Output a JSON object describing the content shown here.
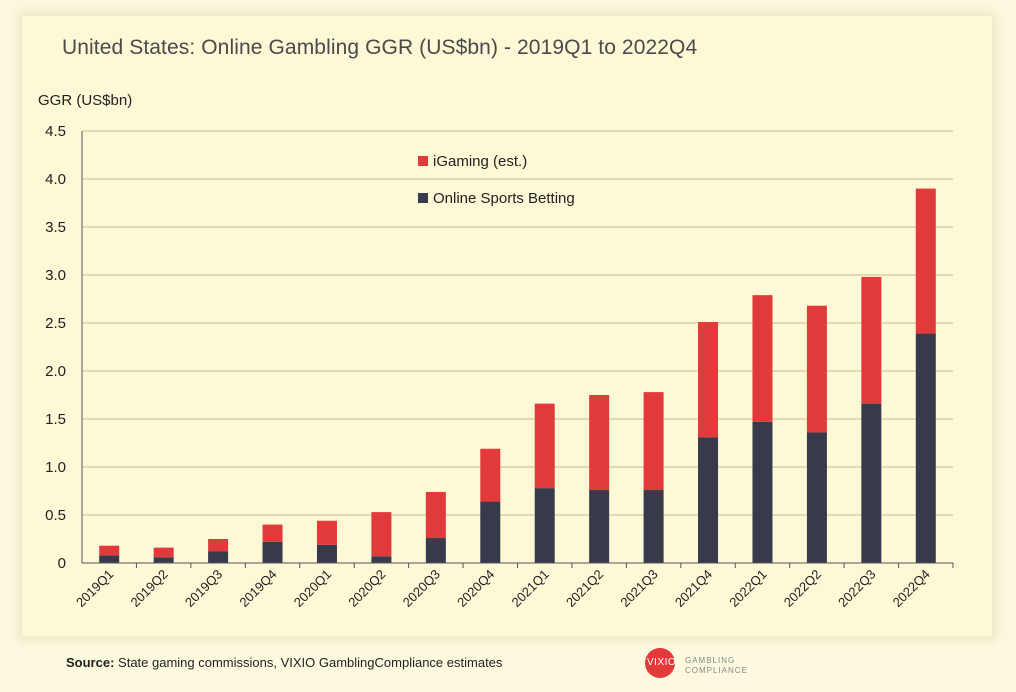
{
  "title": "United States: Online Gambling GGR (US$bn) - 2019Q1 to 2022Q4",
  "source_label": "Source:",
  "source_text": "State gaming commissions, VIXIO GamblingCompliance estimates",
  "logo": {
    "brand": "VIXIO",
    "line1": "GAMBLING",
    "line2": "COMPLIANCE"
  },
  "colors": {
    "igaming": "#e23a3a",
    "sports": "#373a4a",
    "grid": "#c9bf8f",
    "axis": "#555555"
  },
  "chart_data": {
    "type": "bar",
    "stacked": true,
    "title": "United States: Online Gambling GGR (US$bn) - 2019Q1 to 2022Q4",
    "ylabel": "GGR (US$bn)",
    "xlabel": "",
    "ylim": [
      0,
      4.5
    ],
    "yticks": [
      "0",
      "0.5",
      "1.0",
      "1.5",
      "2.0",
      "2.5",
      "3.0",
      "3.5",
      "4.0",
      "4.5"
    ],
    "grid": true,
    "legend_position": "top-center",
    "categories": [
      "2019Q1",
      "2019Q2",
      "2019Q3",
      "2019Q4",
      "2020Q1",
      "2020Q2",
      "2020Q3",
      "2020Q4",
      "2021Q1",
      "2021Q2",
      "2021Q3",
      "2021Q4",
      "2022Q1",
      "2022Q2",
      "2022Q3",
      "2022Q4"
    ],
    "series": [
      {
        "name": "Online Sports Betting",
        "values": [
          0.08,
          0.06,
          0.12,
          0.22,
          0.19,
          0.07,
          0.26,
          0.64,
          0.78,
          0.76,
          0.76,
          1.31,
          1.47,
          1.36,
          1.66,
          2.39
        ]
      },
      {
        "name": "iGaming (est.)",
        "values": [
          0.1,
          0.1,
          0.13,
          0.18,
          0.25,
          0.46,
          0.48,
          0.55,
          0.88,
          0.99,
          1.02,
          1.2,
          1.32,
          1.32,
          1.32,
          1.51
        ]
      }
    ]
  }
}
